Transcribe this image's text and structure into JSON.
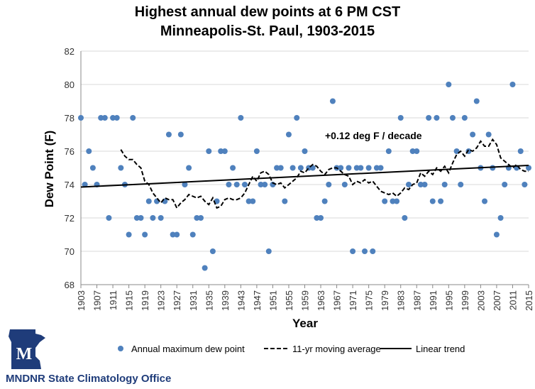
{
  "chart_data": {
    "type": "scatter",
    "title": "Highest annual dew points at 6 PM CST",
    "subtitle": "Minneapolis-St. Paul, 1903-2015",
    "xlabel": "Year",
    "ylabel": "Dew Point (F)",
    "xlim": [
      1903,
      2015
    ],
    "ylim": [
      68,
      82
    ],
    "yticks": [
      68,
      70,
      72,
      74,
      76,
      78,
      80,
      82
    ],
    "xticks": [
      1903,
      1907,
      1911,
      1915,
      1919,
      1923,
      1927,
      1931,
      1935,
      1939,
      1943,
      1947,
      1951,
      1955,
      1959,
      1963,
      1967,
      1971,
      1975,
      1979,
      1983,
      1987,
      1991,
      1995,
      1999,
      2003,
      2007,
      2011,
      2015
    ],
    "grid": "horizontal",
    "legend_position": "bottom",
    "annotation": "+0.12 deg F / decade",
    "colors": {
      "points": "#4f81bd",
      "moving_average": "#000000",
      "trend": "#000000"
    },
    "series": [
      {
        "name": "Annual maximum dew point",
        "kind": "points",
        "x": [
          1903,
          1904,
          1905,
          1906,
          1907,
          1908,
          1909,
          1910,
          1911,
          1912,
          1913,
          1914,
          1915,
          1916,
          1917,
          1918,
          1919,
          1920,
          1921,
          1922,
          1923,
          1924,
          1925,
          1926,
          1927,
          1928,
          1929,
          1930,
          1931,
          1932,
          1933,
          1934,
          1935,
          1936,
          1937,
          1938,
          1939,
          1940,
          1941,
          1942,
          1943,
          1944,
          1945,
          1946,
          1947,
          1948,
          1949,
          1950,
          1951,
          1952,
          1953,
          1954,
          1955,
          1956,
          1957,
          1958,
          1959,
          1960,
          1961,
          1962,
          1963,
          1964,
          1965,
          1966,
          1967,
          1968,
          1969,
          1970,
          1971,
          1972,
          1973,
          1974,
          1975,
          1976,
          1977,
          1978,
          1979,
          1980,
          1981,
          1982,
          1983,
          1984,
          1985,
          1986,
          1987,
          1988,
          1989,
          1990,
          1991,
          1992,
          1993,
          1994,
          1995,
          1996,
          1997,
          1998,
          1999,
          2000,
          2001,
          2002,
          2003,
          2004,
          2005,
          2006,
          2007,
          2008,
          2009,
          2010,
          2011,
          2012,
          2013,
          2014,
          2015
        ],
        "y": [
          78,
          74,
          76,
          75,
          74,
          78,
          78,
          72,
          78,
          78,
          75,
          74,
          71,
          78,
          72,
          72,
          71,
          73,
          72,
          73,
          72,
          73,
          77,
          71,
          71,
          77,
          74,
          75,
          71,
          72,
          72,
          69,
          76,
          70,
          73,
          76,
          76,
          74,
          75,
          74,
          78,
          74,
          73,
          73,
          76,
          74,
          74,
          70,
          74,
          75,
          75,
          73,
          77,
          75,
          78,
          75,
          76,
          75,
          75,
          72,
          72,
          73,
          74,
          79,
          75,
          75,
          74,
          75,
          70,
          75,
          75,
          70,
          75,
          70,
          75,
          75,
          73,
          76,
          73,
          73,
          78,
          72,
          74,
          76,
          76,
          74,
          74,
          78,
          73,
          78,
          73,
          74,
          80,
          78,
          76,
          74,
          78,
          76,
          77,
          79,
          75,
          73,
          77,
          75,
          71,
          72,
          74,
          75,
          80,
          75,
          76,
          74,
          75
        ]
      },
      {
        "name": "11-yr moving average",
        "kind": "dashed-line",
        "x": [
          1913,
          1914,
          1915,
          1916,
          1917,
          1918,
          1919,
          1920,
          1921,
          1922,
          1923,
          1924,
          1925,
          1926,
          1927,
          1928,
          1929,
          1930,
          1931,
          1932,
          1933,
          1934,
          1935,
          1936,
          1937,
          1938,
          1939,
          1940,
          1941,
          1942,
          1943,
          1944,
          1945,
          1946,
          1947,
          1948,
          1949,
          1950,
          1951,
          1952,
          1953,
          1954,
          1955,
          1956,
          1957,
          1958,
          1959,
          1960,
          1961,
          1962,
          1963,
          1964,
          1965,
          1966,
          1967,
          1968,
          1969,
          1970,
          1971,
          1972,
          1973,
          1974,
          1975,
          1976,
          1977,
          1978,
          1979,
          1980,
          1981,
          1982,
          1983,
          1984,
          1985,
          1986,
          1987,
          1988,
          1989,
          1990,
          1991,
          1992,
          1993,
          1994,
          1995,
          1996,
          1997,
          1998,
          1999,
          2000,
          2001,
          2002,
          2003,
          2004,
          2005,
          2006,
          2007,
          2008,
          2009,
          2010,
          2011,
          2012,
          2013,
          2014,
          2015
        ],
        "y": [
          76.1,
          75.7,
          75.5,
          75.5,
          75.2,
          75.0,
          74.2,
          74.0,
          73.5,
          73.2,
          72.9,
          73.2,
          73.1,
          73.1,
          72.6,
          72.9,
          73.1,
          73.4,
          73.3,
          73.2,
          73.3,
          73.0,
          72.8,
          73.2,
          72.6,
          72.7,
          73.1,
          73.2,
          73.1,
          73.1,
          73.2,
          73.5,
          74.0,
          74.5,
          74.2,
          74.7,
          74.8,
          74.6,
          74.1,
          74.0,
          74.1,
          73.8,
          74.0,
          74.2,
          74.4,
          74.8,
          74.7,
          75.0,
          75.2,
          75.1,
          74.8,
          74.6,
          74.9,
          75.0,
          75.0,
          74.8,
          74.6,
          74.5,
          74.0,
          74.2,
          74.1,
          74.3,
          74.1,
          74.2,
          73.9,
          73.6,
          73.5,
          73.4,
          73.5,
          73.3,
          73.5,
          73.8,
          73.7,
          74.0,
          74.1,
          74.7,
          74.5,
          74.8,
          74.6,
          75.0,
          74.8,
          75.1,
          74.7,
          75.3,
          75.8,
          76.0,
          75.7,
          76.1,
          76.0,
          76.2,
          76.6,
          76.3,
          76.3,
          76.7,
          76.4,
          75.6,
          75.4,
          75.2,
          75.0,
          75.2,
          74.9,
          74.8,
          74.8
        ]
      },
      {
        "name": "Linear trend",
        "kind": "solid-line",
        "x": [
          1903,
          2015
        ],
        "y": [
          73.85,
          75.15
        ]
      }
    ]
  },
  "logo": {
    "abbr": "M"
  },
  "organization": "MNDNR State Climatology Office"
}
